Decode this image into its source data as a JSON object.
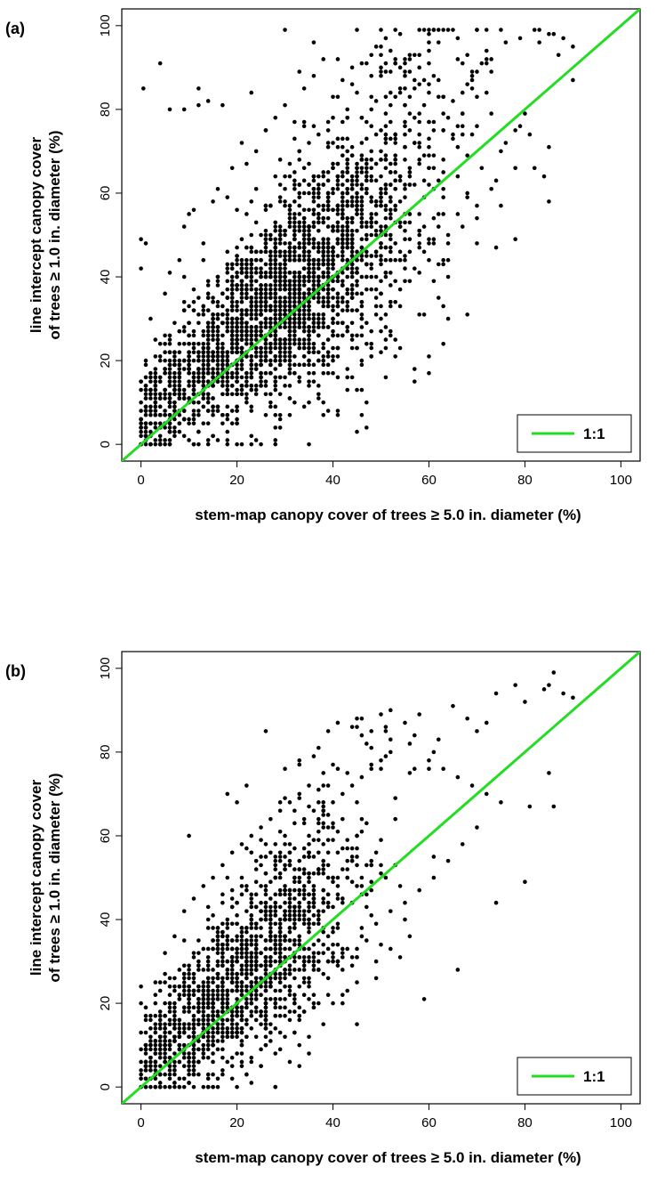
{
  "chart_data": [
    {
      "type": "scatter",
      "panel_label": "(a)",
      "xlabel": "stem-map canopy cover  of trees ≥ 5.0 in. diameter (%)",
      "ylabel_line1": "line intercept canopy cover",
      "ylabel_line2": "of trees ≥ 1.0 in. diameter (%)",
      "xlim": [
        -4,
        104
      ],
      "ylim": [
        -4,
        104
      ],
      "xticks": [
        "0",
        "20",
        "40",
        "60",
        "80",
        "100"
      ],
      "yticks": [
        "0",
        "20",
        "40",
        "60",
        "80",
        "100"
      ],
      "reference_line": {
        "label": "1:1",
        "slope": 1,
        "intercept": 0,
        "color": "#22dd22"
      },
      "legend": {
        "placement": "bottom-right",
        "entries": [
          "1:1"
        ]
      },
      "grid": false,
      "points": [
        [
          0.5,
          85
        ],
        [
          4,
          91
        ],
        [
          6,
          80
        ],
        [
          9,
          80
        ],
        [
          12,
          85
        ],
        [
          12,
          81
        ],
        [
          14,
          82
        ],
        [
          17,
          81
        ],
        [
          23,
          84
        ],
        [
          30,
          99
        ],
        [
          33,
          89
        ],
        [
          36,
          96
        ],
        [
          38,
          92
        ],
        [
          45,
          99
        ],
        [
          54,
          98
        ],
        [
          60,
          98
        ],
        [
          62,
          96
        ],
        [
          69,
          88
        ],
        [
          72,
          84
        ],
        [
          72,
          91
        ],
        [
          76,
          96
        ],
        [
          79,
          97
        ],
        [
          82,
          99
        ],
        [
          85,
          98
        ],
        [
          86,
          98
        ],
        [
          88,
          97
        ],
        [
          90,
          95
        ],
        [
          90,
          87
        ],
        [
          87,
          93
        ],
        [
          81,
          74
        ],
        [
          82,
          66
        ],
        [
          84,
          64
        ],
        [
          85,
          58
        ],
        [
          85,
          71
        ],
        [
          80,
          79
        ],
        [
          78,
          75
        ],
        [
          75,
          70
        ],
        [
          70,
          48
        ],
        [
          67,
          52
        ],
        [
          64,
          44
        ],
        [
          62,
          35
        ],
        [
          63,
          24
        ],
        [
          54,
          37
        ],
        [
          57,
          18
        ],
        [
          51,
          23
        ],
        [
          50,
          30
        ],
        [
          46,
          26
        ],
        [
          42,
          29
        ],
        [
          40,
          21
        ],
        [
          37,
          11
        ],
        [
          32,
          10
        ],
        [
          27,
          12
        ],
        [
          24,
          13
        ],
        [
          19,
          8
        ],
        [
          14,
          5
        ],
        [
          11,
          6
        ],
        [
          9,
          2
        ],
        [
          6,
          1
        ],
        [
          3,
          1
        ],
        [
          0,
          4
        ],
        [
          0,
          49
        ],
        [
          0,
          42
        ],
        [
          1,
          48
        ],
        [
          2,
          30
        ],
        [
          3,
          25
        ],
        [
          5,
          36
        ],
        [
          6,
          41
        ],
        [
          8,
          44
        ],
        [
          9,
          52
        ],
        [
          10,
          55
        ],
        [
          11,
          56
        ],
        [
          13,
          48
        ],
        [
          15,
          58
        ],
        [
          16,
          61
        ],
        [
          18,
          59
        ],
        [
          19,
          66
        ],
        [
          21,
          72
        ],
        [
          22,
          67
        ],
        [
          24,
          70
        ],
        [
          26,
          75
        ],
        [
          28,
          78
        ],
        [
          30,
          81
        ],
        [
          32,
          77
        ],
        [
          34,
          85
        ],
        [
          36,
          88
        ],
        [
          40,
          83
        ],
        [
          42,
          87
        ],
        [
          44,
          90
        ],
        [
          46,
          91
        ],
        [
          48,
          93
        ],
        [
          50,
          95
        ],
        [
          52,
          94
        ],
        [
          55,
          92
        ],
        [
          57,
          93
        ],
        [
          58,
          86
        ],
        [
          60,
          84
        ],
        [
          63,
          83
        ],
        [
          65,
          82
        ],
        [
          67,
          84
        ],
        [
          70,
          83
        ],
        [
          73,
          79
        ],
        [
          76,
          72
        ],
        [
          78,
          66
        ],
        [
          73,
          61
        ],
        [
          70,
          57
        ],
        [
          68,
          60
        ],
        [
          66,
          55
        ],
        [
          71,
          66
        ],
        [
          74,
          63
        ],
        [
          69,
          74
        ],
        [
          25,
          40
        ],
        [
          30,
          45
        ],
        [
          35,
          50
        ],
        [
          40,
          52
        ],
        [
          45,
          55
        ],
        [
          50,
          58
        ],
        [
          55,
          62
        ],
        [
          60,
          66
        ],
        [
          27,
          30
        ],
        [
          33,
          38
        ],
        [
          38,
          43
        ],
        [
          43,
          48
        ],
        [
          48,
          50
        ],
        [
          53,
          53
        ],
        [
          58,
          55
        ],
        [
          20,
          25
        ],
        [
          22,
          35
        ],
        [
          18,
          30
        ],
        [
          15,
          22
        ],
        [
          12,
          18
        ],
        [
          10,
          15
        ],
        [
          8,
          12
        ],
        [
          6,
          10
        ],
        [
          4,
          7
        ],
        [
          2,
          5
        ],
        [
          7,
          22
        ],
        [
          9,
          28
        ],
        [
          13,
          33
        ],
        [
          16,
          38
        ],
        [
          21,
          44
        ],
        [
          26,
          50
        ],
        [
          31,
          55
        ],
        [
          36,
          60
        ],
        [
          41,
          64
        ],
        [
          46,
          68
        ],
        [
          51,
          72
        ],
        [
          56,
          75
        ],
        [
          61,
          77
        ],
        [
          44,
          36
        ],
        [
          49,
          40
        ],
        [
          54,
          44
        ],
        [
          59,
          46
        ],
        [
          64,
          48
        ],
        [
          39,
          33
        ],
        [
          34,
          27
        ],
        [
          29,
          22
        ],
        [
          24,
          18
        ],
        [
          1,
          20
        ],
        [
          2,
          15
        ],
        [
          3,
          12
        ]
      ],
      "scatter_x_stats": {
        "center": 30,
        "spread": 16
      },
      "noise_note": ""
    },
    {
      "type": "scatter",
      "panel_label": "(b)",
      "xlabel": "stem-map canopy cover  of trees ≥ 5.0 in. diameter (%)",
      "ylabel_line1": "line intercept canopy cover",
      "ylabel_line2": "of trees ≥ 1.0 in. diameter (%)",
      "xlim": [
        -4,
        104
      ],
      "ylim": [
        -4,
        104
      ],
      "xticks": [
        "0",
        "20",
        "40",
        "60",
        "80",
        "100"
      ],
      "yticks": [
        "0",
        "20",
        "40",
        "60",
        "80",
        "100"
      ],
      "reference_line": {
        "label": "1:1",
        "slope": 1,
        "intercept": 0,
        "color": "#22dd22"
      },
      "legend": {
        "placement": "bottom-right",
        "entries": [
          "1:1"
        ]
      },
      "grid": false,
      "points": [
        [
          86,
          99
        ],
        [
          85,
          96
        ],
        [
          84,
          95
        ],
        [
          88,
          94
        ],
        [
          90,
          93
        ],
        [
          80,
          92
        ],
        [
          78,
          96
        ],
        [
          74,
          94
        ],
        [
          72,
          87
        ],
        [
          70,
          85
        ],
        [
          68,
          88
        ],
        [
          65,
          91
        ],
        [
          62,
          83
        ],
        [
          61,
          80
        ],
        [
          57,
          84
        ],
        [
          55,
          87
        ],
        [
          52,
          90
        ],
        [
          50,
          89
        ],
        [
          48,
          85
        ],
        [
          46,
          84
        ],
        [
          44,
          86
        ],
        [
          41,
          87
        ],
        [
          26,
          85
        ],
        [
          36,
          79
        ],
        [
          33,
          78
        ],
        [
          30,
          76
        ],
        [
          20,
          68
        ],
        [
          10,
          60
        ],
        [
          18,
          70
        ],
        [
          22,
          72
        ],
        [
          81,
          67
        ],
        [
          85,
          75
        ],
        [
          86,
          67
        ],
        [
          80,
          49
        ],
        [
          74,
          44
        ],
        [
          66,
          28
        ],
        [
          59,
          21
        ],
        [
          55,
          40
        ],
        [
          52,
          33
        ],
        [
          49,
          30
        ],
        [
          45,
          25
        ],
        [
          42,
          22
        ],
        [
          38,
          15
        ],
        [
          33,
          5
        ],
        [
          28,
          8
        ],
        [
          25,
          5
        ],
        [
          19,
          2
        ],
        [
          14,
          3
        ],
        [
          10,
          1
        ],
        [
          6,
          0
        ],
        [
          3,
          0
        ],
        [
          0,
          0
        ],
        [
          1,
          5
        ],
        [
          2,
          10
        ],
        [
          4,
          14
        ],
        [
          6,
          18
        ],
        [
          8,
          22
        ],
        [
          10,
          26
        ],
        [
          12,
          30
        ],
        [
          14,
          33
        ],
        [
          16,
          36
        ],
        [
          18,
          40
        ],
        [
          20,
          44
        ],
        [
          22,
          48
        ],
        [
          24,
          52
        ],
        [
          26,
          55
        ],
        [
          28,
          58
        ],
        [
          30,
          60
        ],
        [
          32,
          63
        ],
        [
          34,
          64
        ],
        [
          36,
          66
        ],
        [
          38,
          67
        ],
        [
          40,
          68
        ],
        [
          42,
          70
        ],
        [
          44,
          72
        ],
        [
          46,
          74
        ],
        [
          48,
          76
        ],
        [
          50,
          78
        ],
        [
          52,
          80
        ],
        [
          56,
          82
        ],
        [
          60,
          78
        ],
        [
          63,
          76
        ],
        [
          66,
          74
        ],
        [
          69,
          72
        ],
        [
          72,
          70
        ],
        [
          75,
          68
        ],
        [
          70,
          62
        ],
        [
          67,
          58
        ],
        [
          64,
          54
        ],
        [
          61,
          50
        ],
        [
          58,
          47
        ],
        [
          55,
          44
        ],
        [
          52,
          42
        ],
        [
          49,
          39
        ],
        [
          46,
          36
        ],
        [
          43,
          33
        ],
        [
          40,
          30
        ],
        [
          37,
          28
        ],
        [
          34,
          25
        ],
        [
          31,
          23
        ],
        [
          28,
          20
        ],
        [
          25,
          18
        ],
        [
          22,
          15
        ],
        [
          19,
          13
        ],
        [
          16,
          11
        ],
        [
          13,
          9
        ],
        [
          10,
          7
        ],
        [
          7,
          5
        ],
        [
          4,
          3
        ],
        [
          2,
          2
        ],
        [
          0,
          24
        ],
        [
          0,
          20
        ],
        [
          1,
          17
        ],
        [
          3,
          25
        ],
        [
          5,
          32
        ],
        [
          7,
          36
        ],
        [
          9,
          42
        ],
        [
          11,
          45
        ],
        [
          13,
          48
        ],
        [
          15,
          50
        ],
        [
          17,
          53
        ],
        [
          19,
          56
        ],
        [
          21,
          58
        ],
        [
          23,
          60
        ],
        [
          25,
          62
        ],
        [
          27,
          64
        ],
        [
          29,
          66
        ],
        [
          31,
          68
        ],
        [
          33,
          70
        ],
        [
          35,
          72
        ]
      ],
      "scatter_x_stats": {
        "center": 22,
        "spread": 13
      },
      "noise_note": ""
    }
  ]
}
